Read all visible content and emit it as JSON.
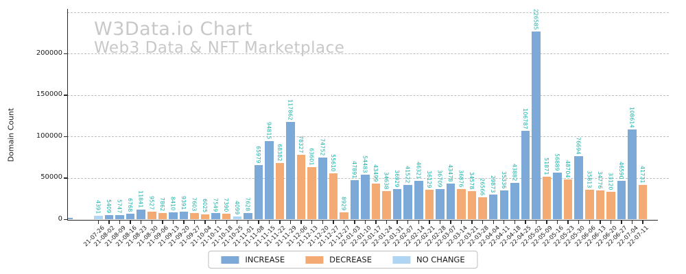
{
  "watermark": {
    "line1": "W3Data.io Chart",
    "line2": "Web3 Data & NFT Marketplace"
  },
  "chart_data": {
    "type": "bar",
    "title": "",
    "xlabel": "",
    "ylabel": "Domain Count",
    "ylim": [
      0,
      253000
    ],
    "yticks": [
      0,
      50000,
      100000,
      150000,
      200000
    ],
    "gridline_values": [
      50000,
      100000,
      150000,
      200000,
      250000
    ],
    "grid": "dashed horizontal",
    "legend_position": "bottom center",
    "value_label_color": "#1cb2a9",
    "colors": {
      "increase": "#7da9d8",
      "decrease": "#f4ab73",
      "no_change": "#aed5f4"
    },
    "legend": [
      {
        "label": "INCREASE",
        "key": "increase"
      },
      {
        "label": "DECREASE",
        "key": "decrease"
      },
      {
        "label": "NO CHANGE",
        "key": "no_change"
      }
    ],
    "clipped_edge_bar": {
      "present": true,
      "approx_value": 2000,
      "change": "increase"
    },
    "bars": [
      {
        "date": "21-07-26",
        "value": 4391,
        "change": "no_change"
      },
      {
        "date": "21-08-02",
        "value": 5409,
        "change": "increase"
      },
      {
        "date": "21-08-09",
        "value": 5747,
        "change": "increase"
      },
      {
        "date": "21-08-16",
        "value": 6768,
        "change": "increase"
      },
      {
        "date": "21-08-23",
        "value": 11841,
        "change": "increase"
      },
      {
        "date": "21-08-30",
        "value": 9527,
        "change": "decrease"
      },
      {
        "date": "21-09-06",
        "value": 7862,
        "change": "decrease"
      },
      {
        "date": "21-09-13",
        "value": 8410,
        "change": "increase"
      },
      {
        "date": "21-09-20",
        "value": 9391,
        "change": "increase"
      },
      {
        "date": "21-09-27",
        "value": 7603,
        "change": "decrease"
      },
      {
        "date": "21-10-04",
        "value": 6025,
        "change": "decrease"
      },
      {
        "date": "21-10-11",
        "value": 7549,
        "change": "increase"
      },
      {
        "date": "21-10-18",
        "value": 7390,
        "change": "decrease"
      },
      {
        "date": "21-10-25",
        "value": 4099,
        "change": "no_change"
      },
      {
        "date": "21-11-01",
        "value": 7628,
        "change": "increase"
      },
      {
        "date": "21-11-08",
        "value": 65979,
        "change": "increase"
      },
      {
        "date": "21-11-15",
        "value": 94815,
        "change": "increase"
      },
      {
        "date": "21-11-22",
        "value": 68382,
        "change": "decrease"
      },
      {
        "date": "21-11-29",
        "value": 117862,
        "change": "increase"
      },
      {
        "date": "21-12-06",
        "value": 78327,
        "change": "decrease"
      },
      {
        "date": "21-12-13",
        "value": 63601,
        "change": "decrease"
      },
      {
        "date": "21-12-20",
        "value": 74752,
        "change": "increase"
      },
      {
        "date": "21-12-27",
        "value": 55610,
        "change": "decrease"
      },
      {
        "date": "21-12-27",
        "value": 8929,
        "change": "decrease"
      },
      {
        "date": "22-01-03",
        "value": 47891,
        "change": "increase"
      },
      {
        "date": "22-01-10",
        "value": 54483,
        "change": "increase"
      },
      {
        "date": "22-01-17",
        "value": 43499,
        "change": "decrease"
      },
      {
        "date": "22-01-24",
        "value": 34638,
        "change": "decrease"
      },
      {
        "date": "22-01-31",
        "value": 36929,
        "change": "increase"
      },
      {
        "date": "22-02-07",
        "value": 41522,
        "change": "increase"
      },
      {
        "date": "22-02-14",
        "value": 46321,
        "change": "increase"
      },
      {
        "date": "22-02-21",
        "value": 36129,
        "change": "decrease"
      },
      {
        "date": "22-02-28",
        "value": 36709,
        "change": "increase"
      },
      {
        "date": "22-03-07",
        "value": 43478,
        "change": "increase"
      },
      {
        "date": "22-03-14",
        "value": 36876,
        "change": "decrease"
      },
      {
        "date": "22-03-21",
        "value": 34578,
        "change": "decrease"
      },
      {
        "date": "22-03-28",
        "value": 26566,
        "change": "decrease"
      },
      {
        "date": "22-04-04",
        "value": 29873,
        "change": "increase"
      },
      {
        "date": "22-04-11",
        "value": 35336,
        "change": "increase"
      },
      {
        "date": "22-04-18",
        "value": 43882,
        "change": "increase"
      },
      {
        "date": "22-04-25",
        "value": 106787,
        "change": "increase"
      },
      {
        "date": "22-05-02",
        "value": 226585,
        "change": "increase"
      },
      {
        "date": "22-05-09",
        "value": 51871,
        "change": "decrease"
      },
      {
        "date": "22-05-16",
        "value": 56889,
        "change": "increase"
      },
      {
        "date": "22-05-23",
        "value": 48704,
        "change": "decrease"
      },
      {
        "date": "22-05-30",
        "value": 76694,
        "change": "increase"
      },
      {
        "date": "22-06-06",
        "value": 35813,
        "change": "decrease"
      },
      {
        "date": "22-06-13",
        "value": 34776,
        "change": "decrease"
      },
      {
        "date": "22-06-20",
        "value": 33120,
        "change": "decrease"
      },
      {
        "date": "22-06-27",
        "value": 46590,
        "change": "increase"
      },
      {
        "date": "22-07-04",
        "value": 108614,
        "change": "increase"
      },
      {
        "date": "22-07-11",
        "value": 41731,
        "change": "decrease"
      }
    ]
  }
}
